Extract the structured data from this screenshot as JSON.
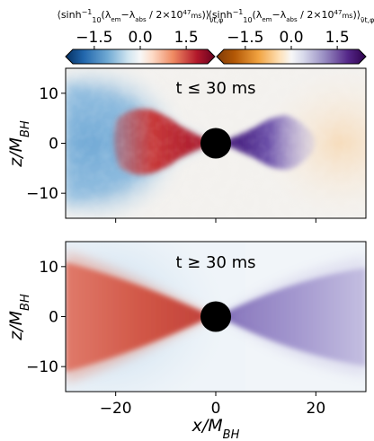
{
  "chart_data": {
    "type": "heatmap",
    "colorbars": [
      {
        "label_html": "⟨sinh<tspan baseline-shift='super' font-size='8'>−1</tspan><tspan baseline-shift='sub' font-size='8'>10</tspan>(λ<tspan baseline-shift='sub' font-size='7'>em</tspan>−λ<tspan baseline-shift='sub' font-size='7'>abs</tspan> / 2×10<tspan baseline-shift='super' font-size='7'>47</tspan><tspan font-size='8'>ms</tspan>)⟩<tspan baseline-shift='sub' font-size='8'>ν</tspan><tspan baseline-shift='sub' font-size='8'>t,φ</tspan>",
        "colormap": "RdBu_r",
        "range": [
          -2.2,
          2.2
        ],
        "ticks": [
          -1.5,
          0.0,
          1.5
        ],
        "tick_labels": [
          "−1.5",
          "0.0",
          "1.5"
        ]
      },
      {
        "label_html": "⟨sinh<tspan baseline-shift='super' font-size='8'>−1</tspan><tspan baseline-shift='sub' font-size='8'>10</tspan>(λ<tspan baseline-shift='sub' font-size='7'>em</tspan>−λ<tspan baseline-shift='sub' font-size='7'>abs</tspan> / 2×10<tspan baseline-shift='super' font-size='7'>47</tspan><tspan font-size='8'>ms</tspan>)⟩<tspan baseline-shift='sub' font-size='8'>ν̄</tspan><tspan baseline-shift='sub' font-size='8'>t,φ</tspan>",
        "colormap": "PuOr",
        "range": [
          -2.2,
          2.2
        ],
        "ticks": [
          -1.5,
          0.0,
          1.5
        ],
        "tick_labels": [
          "−1.5",
          "0.0",
          "1.5"
        ]
      }
    ],
    "panels": [
      {
        "annotation": "t ≤  30 ms",
        "xlim": [
          -30,
          30
        ],
        "ylim": [
          -15,
          15
        ],
        "yticks": [
          -10,
          0,
          10
        ],
        "ytick_labels": [
          "−10",
          "0",
          "10"
        ],
        "black_hole": {
          "x": 0,
          "z": 0,
          "radius": 1.8
        },
        "ylabel": "z/M_BH",
        "noisy": true
      },
      {
        "annotation": "t ≥  30 ms",
        "xlim": [
          -30,
          30
        ],
        "ylim": [
          -15,
          15
        ],
        "yticks": [
          -10,
          0,
          10
        ],
        "ytick_labels": [
          "−10",
          "0",
          "10"
        ],
        "black_hole": {
          "x": 0,
          "z": 0,
          "radius": 1.8
        },
        "ylabel": "z/M_BH",
        "noisy": false
      }
    ],
    "xticks": [
      -20,
      0,
      20
    ],
    "xtick_labels": [
      "−20",
      "0",
      "20"
    ],
    "xlabel": "x/M_BH"
  }
}
